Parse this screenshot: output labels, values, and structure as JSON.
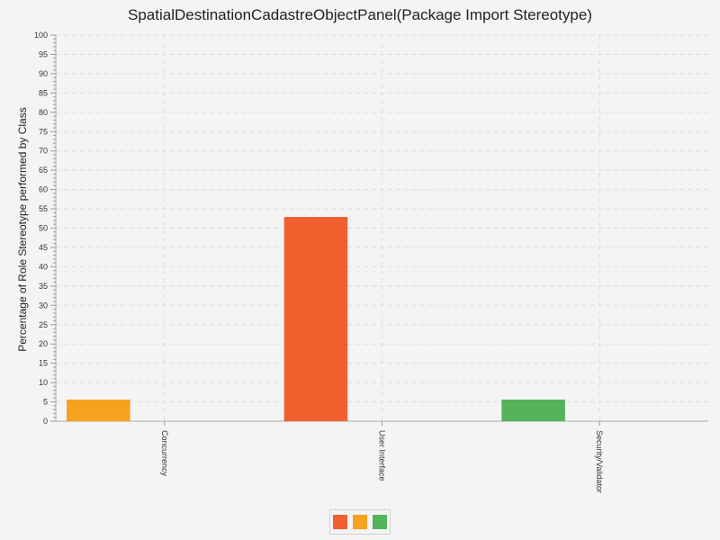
{
  "chart_data": {
    "type": "bar",
    "title": "SpatialDestinationCadastreObjectPanel(Package Import Stereotype)",
    "xlabel": "",
    "ylabel": "Percentage of Role Stereotype performed by Class",
    "categories": [
      "Concurrency",
      "User Interface",
      "Security/Validator"
    ],
    "series": [
      {
        "values": [
          0,
          52.9,
          0
        ],
        "color": "#f05f2e"
      },
      {
        "values": [
          5.6,
          0,
          0
        ],
        "color": "#f6a21e"
      },
      {
        "values": [
          0,
          0,
          5.6
        ],
        "color": "#55b35a"
      }
    ],
    "ylim": [
      0,
      100
    ],
    "yticks": [
      0,
      5,
      10,
      15,
      20,
      25,
      30,
      35,
      40,
      45,
      50,
      55,
      60,
      65,
      70,
      75,
      80,
      85,
      90,
      95,
      100
    ],
    "grid": true,
    "legend_position": "bottom"
  }
}
